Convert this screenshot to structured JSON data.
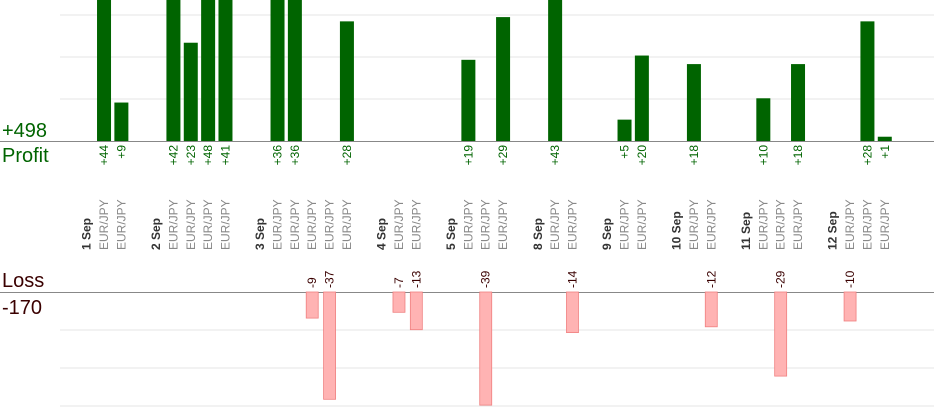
{
  "summary": {
    "profit_total": "+498",
    "profit_label": "Profit",
    "loss_label": "Loss",
    "loss_total": "-170"
  },
  "colors": {
    "profit_bar": "#006400",
    "loss_bar": "#ffb3b3",
    "profit_text": "#006400",
    "loss_text": "#3a0000",
    "day_text": "#333333",
    "pair_text": "#888888",
    "grid": "#e6e6e6"
  },
  "chart_data": {
    "type": "bar",
    "grid": true,
    "profit_axis_max": 33,
    "loss_axis_max": 40,
    "columns": [
      {
        "label": "1 Sep",
        "kind": "day"
      },
      {
        "label": "EUR/JPY",
        "kind": "trade",
        "value": 44,
        "text": "+44"
      },
      {
        "label": "EUR/JPY",
        "kind": "trade",
        "value": 9,
        "text": "+9"
      },
      {
        "label": "",
        "kind": "gap"
      },
      {
        "label": "2 Sep",
        "kind": "day"
      },
      {
        "label": "EUR/JPY",
        "kind": "trade",
        "value": 42,
        "text": "+42"
      },
      {
        "label": "EUR/JPY",
        "kind": "trade",
        "value": 23,
        "text": "+23"
      },
      {
        "label": "EUR/JPY",
        "kind": "trade",
        "value": 48,
        "text": "+48"
      },
      {
        "label": "EUR/JPY",
        "kind": "trade",
        "value": 41,
        "text": "+41"
      },
      {
        "label": "",
        "kind": "gap"
      },
      {
        "label": "3 Sep",
        "kind": "day"
      },
      {
        "label": "EUR/JPY",
        "kind": "trade",
        "value": 36,
        "text": "+36"
      },
      {
        "label": "EUR/JPY",
        "kind": "trade",
        "value": 36,
        "text": "+36"
      },
      {
        "label": "EUR/JPY",
        "kind": "trade",
        "value": -9,
        "text": "-9"
      },
      {
        "label": "EUR/JPY",
        "kind": "trade",
        "value": -37,
        "text": "-37"
      },
      {
        "label": "EUR/JPY",
        "kind": "trade",
        "value": 28,
        "text": "+28"
      },
      {
        "label": "",
        "kind": "gap"
      },
      {
        "label": "4 Sep",
        "kind": "day"
      },
      {
        "label": "EUR/JPY",
        "kind": "trade",
        "value": -7,
        "text": "-7"
      },
      {
        "label": "EUR/JPY",
        "kind": "trade",
        "value": -13,
        "text": "-13"
      },
      {
        "label": "",
        "kind": "gap"
      },
      {
        "label": "5 Sep",
        "kind": "day"
      },
      {
        "label": "EUR/JPY",
        "kind": "trade",
        "value": 19,
        "text": "+19"
      },
      {
        "label": "EUR/JPY",
        "kind": "trade",
        "value": -39,
        "text": "-39"
      },
      {
        "label": "EUR/JPY",
        "kind": "trade",
        "value": 29,
        "text": "+29"
      },
      {
        "label": "",
        "kind": "gap"
      },
      {
        "label": "8 Sep",
        "kind": "day"
      },
      {
        "label": "EUR/JPY",
        "kind": "trade",
        "value": 43,
        "text": "+43"
      },
      {
        "label": "EUR/JPY",
        "kind": "trade",
        "value": -14,
        "text": "-14"
      },
      {
        "label": "",
        "kind": "gap"
      },
      {
        "label": "9 Sep",
        "kind": "day"
      },
      {
        "label": "EUR/JPY",
        "kind": "trade",
        "value": 5,
        "text": "+5"
      },
      {
        "label": "EUR/JPY",
        "kind": "trade",
        "value": 20,
        "text": "+20"
      },
      {
        "label": "",
        "kind": "gap"
      },
      {
        "label": "10 Sep",
        "kind": "day"
      },
      {
        "label": "EUR/JPY",
        "kind": "trade",
        "value": 18,
        "text": "+18"
      },
      {
        "label": "EUR/JPY",
        "kind": "trade",
        "value": -12,
        "text": "-12"
      },
      {
        "label": "",
        "kind": "gap"
      },
      {
        "label": "11 Sep",
        "kind": "day"
      },
      {
        "label": "EUR/JPY",
        "kind": "trade",
        "value": 10,
        "text": "+10"
      },
      {
        "label": "EUR/JPY",
        "kind": "trade",
        "value": -29,
        "text": "-29"
      },
      {
        "label": "EUR/JPY",
        "kind": "trade",
        "value": 18,
        "text": "+18"
      },
      {
        "label": "",
        "kind": "gap"
      },
      {
        "label": "12 Sep",
        "kind": "day"
      },
      {
        "label": "EUR/JPY",
        "kind": "trade",
        "value": -10,
        "text": "-10"
      },
      {
        "label": "EUR/JPY",
        "kind": "trade",
        "value": 28,
        "text": "+28"
      },
      {
        "label": "EUR/JPY",
        "kind": "trade",
        "value": 1,
        "text": "+1"
      }
    ]
  }
}
